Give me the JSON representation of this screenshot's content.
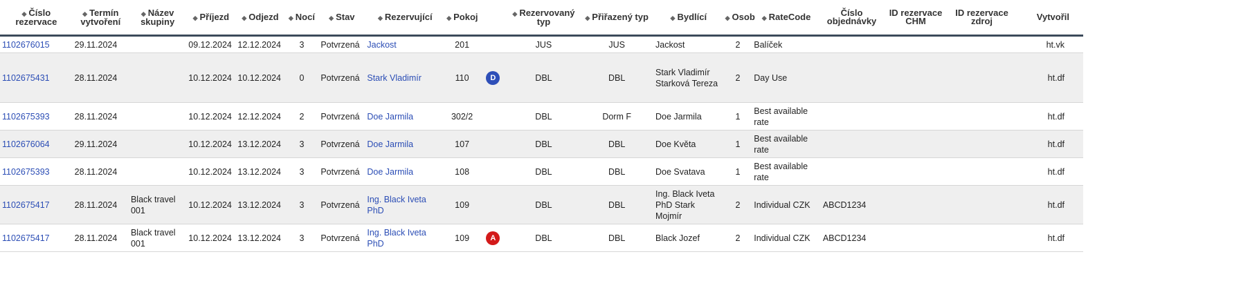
{
  "columns": [
    {
      "label": "Číslo rezervace"
    },
    {
      "label": "Termín vytvoření"
    },
    {
      "label": "Název skupiny"
    },
    {
      "label": "Příjezd"
    },
    {
      "label": "Odjezd"
    },
    {
      "label": "Nocí"
    },
    {
      "label": "Stav"
    },
    {
      "label": "Rezervující"
    },
    {
      "label": "Pokoj"
    },
    {
      "label": ""
    },
    {
      "label": "Rezervovaný typ"
    },
    {
      "label": "Přiřazený typ"
    },
    {
      "label": "Bydlící"
    },
    {
      "label": "Osob"
    },
    {
      "label": "RateCode"
    },
    {
      "label": "Číslo objednávky"
    },
    {
      "label": "ID rezervace CHM"
    },
    {
      "label": "ID rezervace zdroj"
    },
    {
      "label": "Vytvořil"
    }
  ],
  "rows": [
    {
      "id": "1102676015",
      "created": "29.11.2024",
      "group": "",
      "arrival": "09.12.2024",
      "departure": "12.12.2024",
      "nights": "3",
      "status": "Potvrzená",
      "booker": "Jackost",
      "room": "201",
      "badge": "",
      "badge_color": "",
      "reserved_type": "JUS",
      "assigned_type": "JUS",
      "guest": "Jackost",
      "persons": "2",
      "ratecode": "Balíček",
      "order": "",
      "chm": "",
      "source": "",
      "creator": "ht.vk"
    },
    {
      "id": "1102675431",
      "created": "28.11.2024",
      "group": "",
      "arrival": "10.12.2024",
      "departure": "10.12.2024",
      "nights": "0",
      "status": "Potvrzená",
      "booker": "Stark Vladimír",
      "room": "110",
      "badge": "D",
      "badge_color": "blue",
      "reserved_type": "DBL",
      "assigned_type": "DBL",
      "guest": "Stark Vladimír Starková Tereza",
      "persons": "2",
      "ratecode": "Day Use",
      "order": "",
      "chm": "",
      "source": "",
      "creator": "ht.df"
    },
    {
      "id": "1102675393",
      "created": "28.11.2024",
      "group": "",
      "arrival": "10.12.2024",
      "departure": "12.12.2024",
      "nights": "2",
      "status": "Potvrzená",
      "booker": "Doe Jarmila",
      "room": "302/2",
      "badge": "",
      "badge_color": "",
      "reserved_type": "DBL",
      "assigned_type": "Dorm F",
      "guest": "Doe Jarmila",
      "persons": "1",
      "ratecode": "Best available rate",
      "order": "",
      "chm": "",
      "source": "",
      "creator": "ht.df"
    },
    {
      "id": "1102676064",
      "created": "29.11.2024",
      "group": "",
      "arrival": "10.12.2024",
      "departure": "13.12.2024",
      "nights": "3",
      "status": "Potvrzená",
      "booker": "Doe Jarmila",
      "room": "107",
      "badge": "",
      "badge_color": "",
      "reserved_type": "DBL",
      "assigned_type": "DBL",
      "guest": "Doe Květa",
      "persons": "1",
      "ratecode": "Best available rate",
      "order": "",
      "chm": "",
      "source": "",
      "creator": "ht.df"
    },
    {
      "id": "1102675393",
      "created": "28.11.2024",
      "group": "",
      "arrival": "10.12.2024",
      "departure": "13.12.2024",
      "nights": "3",
      "status": "Potvrzená",
      "booker": "Doe Jarmila",
      "room": "108",
      "badge": "",
      "badge_color": "",
      "reserved_type": "DBL",
      "assigned_type": "DBL",
      "guest": "Doe Svatava",
      "persons": "1",
      "ratecode": "Best available rate",
      "order": "",
      "chm": "",
      "source": "",
      "creator": "ht.df"
    },
    {
      "id": "1102675417",
      "created": "28.11.2024",
      "group": "Black travel 001",
      "arrival": "10.12.2024",
      "departure": "13.12.2024",
      "nights": "3",
      "status": "Potvrzená",
      "booker": "Ing. Black Iveta PhD",
      "room": "109",
      "badge": "",
      "badge_color": "",
      "reserved_type": "DBL",
      "assigned_type": "DBL",
      "guest": "Ing. Black Iveta PhD Stark Mojmír",
      "persons": "2",
      "ratecode": "Individual CZK",
      "order": "ABCD1234",
      "chm": "",
      "source": "",
      "creator": "ht.df"
    },
    {
      "id": "1102675417",
      "created": "28.11.2024",
      "group": "Black travel 001",
      "arrival": "10.12.2024",
      "departure": "13.12.2024",
      "nights": "3",
      "status": "Potvrzená",
      "booker": "Ing. Black Iveta PhD",
      "room": "109",
      "badge": "A",
      "badge_color": "red",
      "reserved_type": "DBL",
      "assigned_type": "DBL",
      "guest": "Black Jozef",
      "persons": "2",
      "ratecode": "Individual CZK",
      "order": "ABCD1234",
      "chm": "",
      "source": "",
      "creator": "ht.df"
    }
  ]
}
